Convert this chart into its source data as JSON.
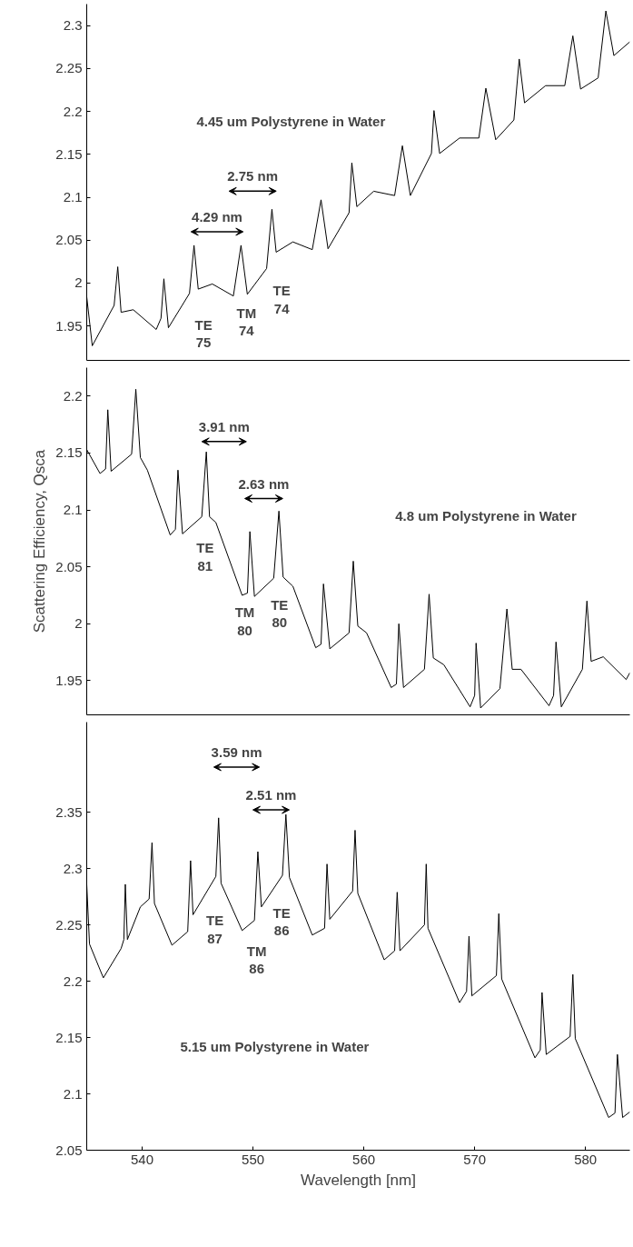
{
  "chart_data": [
    {
      "type": "line",
      "xlim": [
        535,
        584
      ],
      "ylim": [
        1.91,
        2.325
      ],
      "yticks": [
        1.95,
        2,
        2.05,
        2.1,
        2.15,
        2.2,
        2.25,
        2.3
      ],
      "tick_labels": "y",
      "series": [
        {
          "color": "#000000",
          "x": [
            535.0,
            535.5,
            537.47,
            537.8,
            538.1,
            539.2,
            541.27,
            541.7,
            541.96,
            542.37,
            544.27,
            544.68,
            545.06,
            546.33,
            548.23,
            548.92,
            549.49,
            551.23,
            551.71,
            552.09,
            553.6,
            555.35,
            556.14,
            556.77,
            558.67,
            558.92,
            559.37,
            560.89,
            562.78,
            563.48,
            564.2,
            566.1,
            566.33,
            566.84,
            568.64,
            570.38,
            571.01,
            571.9,
            573.54,
            574.02,
            574.5,
            576.4,
            578.13,
            578.86,
            579.56,
            581.14,
            581.84,
            582.56,
            584
          ],
          "values": [
            1.984,
            1.927,
            1.974,
            2.019,
            1.966,
            1.969,
            1.946,
            1.959,
            2.005,
            1.948,
            1.988,
            2.044,
            1.993,
            1.999,
            1.985,
            2.044,
            1.987,
            2.017,
            2.086,
            2.036,
            2.048,
            2.039,
            2.097,
            2.04,
            2.082,
            2.14,
            2.089,
            2.107,
            2.102,
            2.16,
            2.102,
            2.151,
            2.201,
            2.151,
            2.169,
            2.169,
            2.227,
            2.167,
            2.19,
            2.261,
            2.21,
            2.23,
            2.23,
            2.288,
            2.226,
            2.239,
            2.317,
            2.265,
            2.281
          ]
        }
      ],
      "annotations": [
        "4.45 um Polystyrene in Water",
        "4.29 nm",
        "2.75 nm",
        "TE\n75",
        "TM\n74",
        "TE\n74"
      ]
    },
    {
      "type": "line",
      "xlim": [
        535,
        584
      ],
      "ylim": [
        1.92,
        2.225
      ],
      "yticks": [
        1.95,
        2,
        2.05,
        2.1,
        2.15,
        2.2
      ],
      "tick_labels": "y",
      "ylabel": "Scattering Efficiency, Qsca",
      "series": [
        {
          "color": "#000000",
          "x": [
            535.0,
            536.2,
            536.7,
            536.9,
            537.2,
            539.05,
            539.43,
            539.84,
            540.47,
            542.53,
            543.0,
            543.23,
            543.64,
            545.38,
            545.79,
            546.08,
            546.65,
            549.02,
            549.5,
            549.72,
            550.13,
            551.87,
            552.34,
            552.72,
            553.6,
            555.66,
            556.14,
            556.36,
            556.93,
            558.67,
            559.05,
            559.46,
            560.25,
            562.47,
            562.94,
            563.16,
            563.58,
            565.47,
            565.89,
            566.27,
            567.22,
            569.59,
            570.0,
            570.13,
            570.54,
            572.28,
            572.91,
            573.39,
            574.18,
            576.71,
            577.12,
            577.34,
            577.82,
            579.72,
            580.13,
            580.51,
            581.6,
            583.67,
            584
          ],
          "values": [
            2.153,
            2.132,
            2.136,
            2.188,
            2.134,
            2.149,
            2.206,
            2.146,
            2.135,
            2.078,
            2.083,
            2.135,
            2.079,
            2.094,
            2.151,
            2.094,
            2.089,
            2.025,
            2.027,
            2.081,
            2.024,
            2.04,
            2.099,
            2.041,
            2.033,
            1.979,
            1.982,
            2.035,
            1.978,
            1.992,
            2.055,
            1.998,
            1.992,
            1.944,
            1.947,
            2.0,
            1.944,
            1.96,
            2.026,
            1.97,
            1.964,
            1.927,
            1.937,
            1.983,
            1.926,
            1.943,
            2.013,
            1.96,
            1.96,
            1.928,
            1.937,
            1.984,
            1.927,
            1.96,
            2.02,
            1.967,
            1.971,
            1.951,
            1.957
          ]
        }
      ],
      "annotations": [
        "4.8 um Polystyrene in Water",
        "3.91 nm",
        "2.63 nm",
        "TE\n81",
        "TM\n80",
        "TE\n80"
      ]
    },
    {
      "type": "line",
      "xlim": [
        535,
        584
      ],
      "ylim": [
        2.05,
        2.43
      ],
      "xticks": [
        540,
        550,
        560,
        570,
        580
      ],
      "yticks": [
        2.05,
        2.1,
        2.15,
        2.2,
        2.25,
        2.3,
        2.35
      ],
      "xlabel": "Wavelength [nm]",
      "series": [
        {
          "color": "#000000",
          "x": [
            535.0,
            535.25,
            536.5,
            538.1,
            538.35,
            538.48,
            538.67,
            539.84,
            540.63,
            540.89,
            541.11,
            542.69,
            544.11,
            544.37,
            544.59,
            546.65,
            546.9,
            547.12,
            549.02,
            550.13,
            550.44,
            550.76,
            552.66,
            552.97,
            553.29,
            555.35,
            556.46,
            556.68,
            556.93,
            558.99,
            559.21,
            559.46,
            561.84,
            562.78,
            563.01,
            563.26,
            565.47,
            565.63,
            565.79,
            568.64,
            569.27,
            569.49,
            569.75,
            571.96,
            572.18,
            572.44,
            575.44,
            575.92,
            576.08,
            576.46,
            578.61,
            578.86,
            579.08,
            582.09,
            582.66,
            582.88,
            583.35,
            584
          ],
          "values": [
            2.286,
            2.233,
            2.203,
            2.229,
            2.237,
            2.286,
            2.237,
            2.266,
            2.273,
            2.323,
            2.269,
            2.232,
            2.244,
            2.307,
            2.259,
            2.293,
            2.345,
            2.287,
            2.245,
            2.254,
            2.315,
            2.266,
            2.294,
            2.348,
            2.292,
            2.241,
            2.247,
            2.304,
            2.255,
            2.28,
            2.334,
            2.278,
            2.219,
            2.227,
            2.279,
            2.227,
            2.25,
            2.304,
            2.247,
            2.181,
            2.191,
            2.24,
            2.187,
            2.205,
            2.26,
            2.202,
            2.132,
            2.139,
            2.19,
            2.135,
            2.151,
            2.206,
            2.149,
            2.079,
            2.083,
            2.135,
            2.079,
            2.084
          ]
        }
      ],
      "annotations": [
        "5.15 um Polystyrene in Water",
        "3.59 nm",
        "2.51 nm",
        "TE\n87",
        "TM\n86",
        "TE\n86"
      ]
    }
  ]
}
